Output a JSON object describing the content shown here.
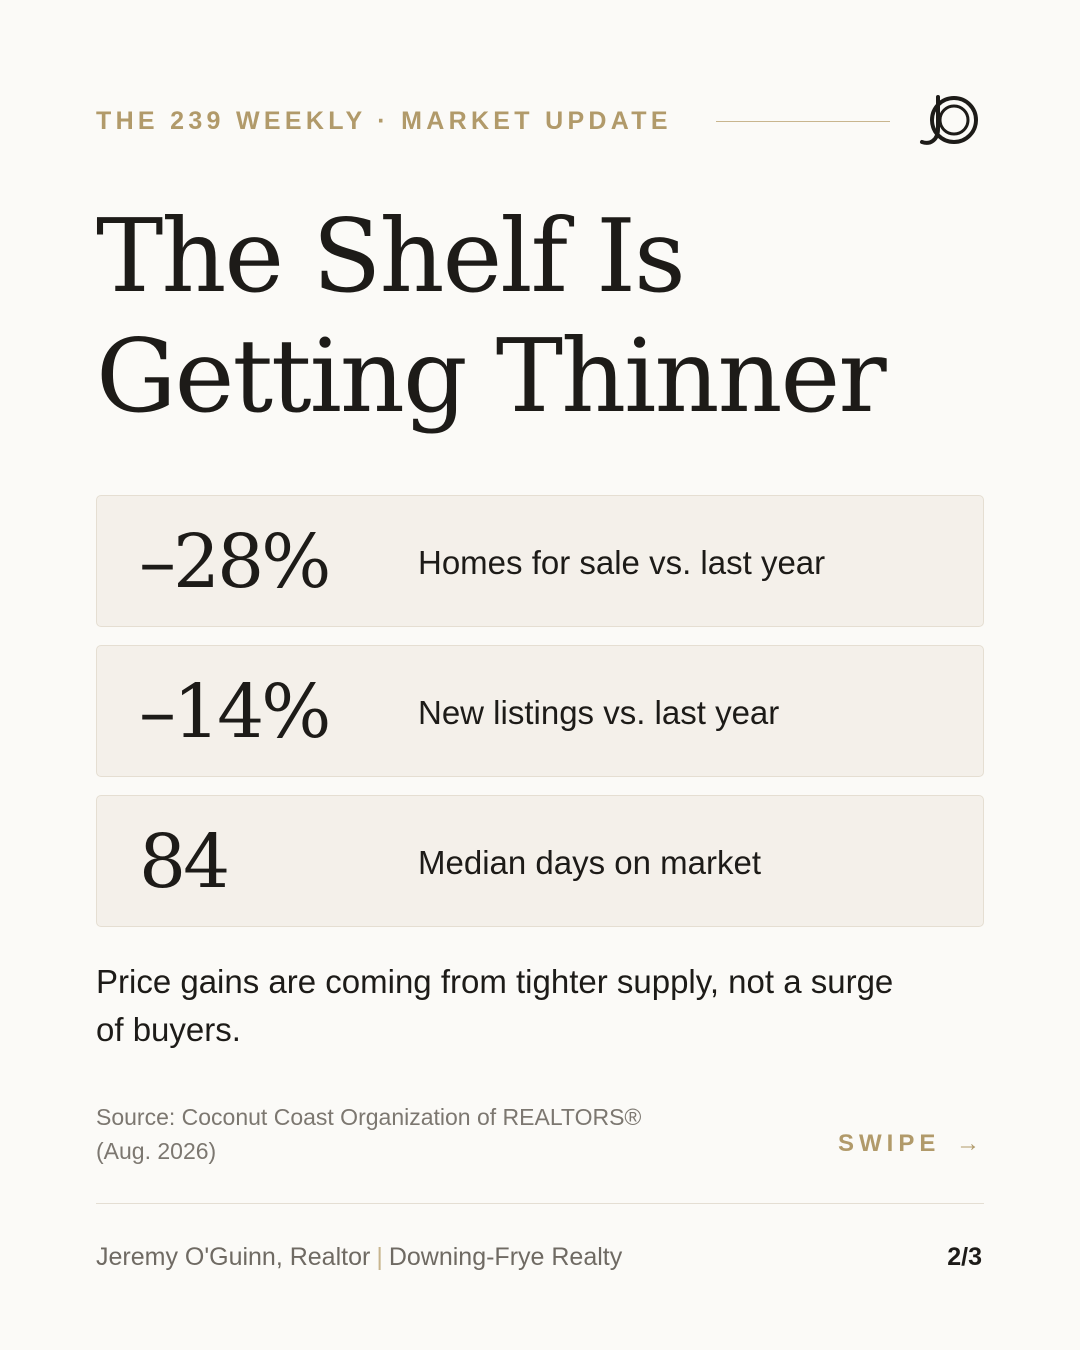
{
  "header": {
    "eyebrow": "THE 239 WEEKLY · MARKET UPDATE",
    "logo_icon": "jo-monogram-logo"
  },
  "title": {
    "line1": "The Shelf Is",
    "line2": "Getting Thinner"
  },
  "stats": [
    {
      "value": "–28%",
      "label": "Homes for sale vs. last year"
    },
    {
      "value": "–14%",
      "label": "New listings vs. last year"
    },
    {
      "value": "84",
      "label": "Median days on market"
    }
  ],
  "summary": "Price gains are coming from tighter supply, not a surge of buyers.",
  "source": {
    "line1": "Source: Coconut Coast Organization of REALTORS®",
    "line2": "(Aug. 2026)"
  },
  "swipe": {
    "label": "SWIPE",
    "arrow": "→"
  },
  "footer": {
    "agent": "Jeremy O'Guinn, Realtor",
    "separator": "|",
    "brokerage": "Downing-Frye Realty",
    "page": "2/3"
  },
  "colors": {
    "background": "#fbfaf7",
    "accent": "#b19a6a",
    "card": "#f4f0ea",
    "text": "#1d1b18"
  }
}
